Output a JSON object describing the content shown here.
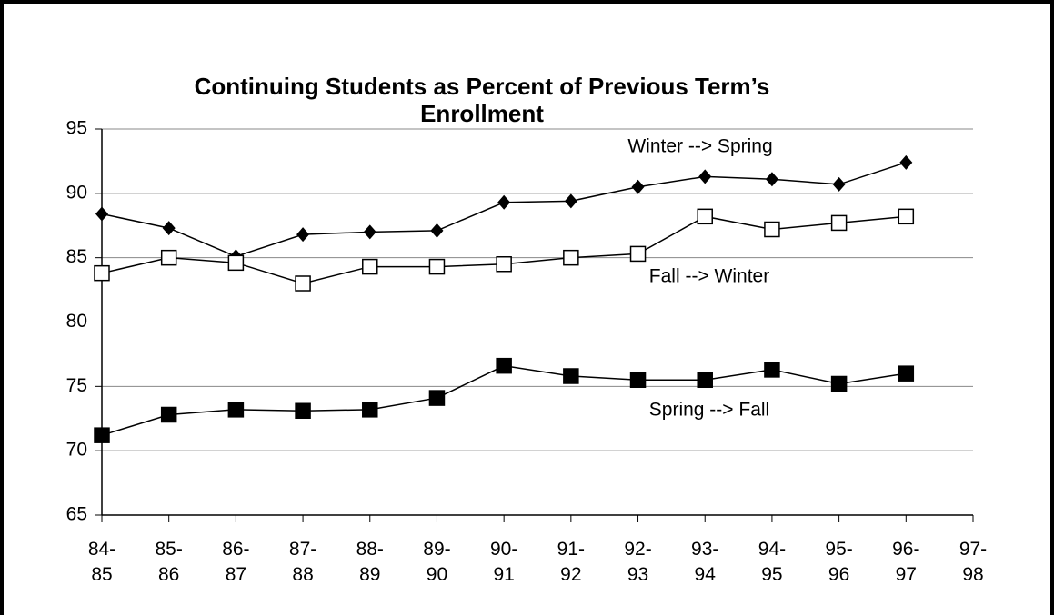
{
  "chart_data": {
    "type": "line",
    "title": "Continuing Students as Percent of Previous Term’s Enrollment",
    "categories": [
      "84-85",
      "85-86",
      "86-87",
      "87-88",
      "88-89",
      "89-90",
      "90-91",
      "91-92",
      "92-93",
      "93-94",
      "94-95",
      "95-96",
      "96-97",
      "97-98"
    ],
    "series": [
      {
        "name": "Winter --> Spring",
        "color": "#000000",
        "marker": "diamond",
        "values": [
          88.4,
          87.3,
          85.1,
          86.8,
          87.0,
          87.1,
          89.3,
          89.4,
          90.5,
          91.3,
          91.1,
          90.7,
          92.4,
          null
        ]
      },
      {
        "name": "Fall --> Winter",
        "color": "#000000",
        "marker": "open-square",
        "values": [
          83.8,
          85.0,
          84.6,
          83.0,
          84.3,
          84.3,
          84.5,
          85.0,
          85.3,
          88.2,
          87.2,
          87.7,
          88.2,
          null
        ]
      },
      {
        "name": "Spring --> Fall",
        "color": "#000000",
        "marker": "filled-square",
        "values": [
          71.2,
          72.8,
          73.2,
          73.1,
          73.2,
          74.1,
          76.6,
          75.8,
          75.5,
          75.5,
          76.3,
          75.2,
          76.0,
          null
        ]
      }
    ],
    "ylim": [
      65,
      95
    ],
    "yticks": [
      65,
      70,
      75,
      80,
      85,
      90,
      95
    ],
    "grid": true
  }
}
